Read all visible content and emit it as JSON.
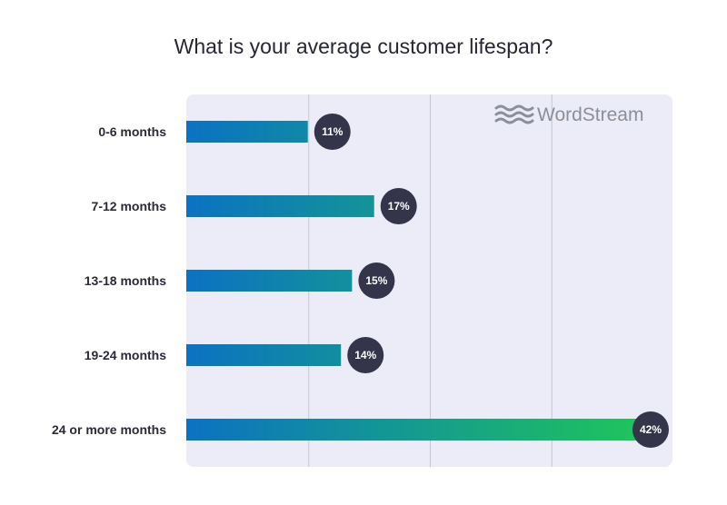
{
  "chart_data": {
    "type": "bar",
    "orientation": "horizontal",
    "title": "What is your average customer lifespan?",
    "categories": [
      "0-6 months",
      "7-12 months",
      "13-18 months",
      "19-24 months",
      "24 or more months"
    ],
    "values": [
      11,
      17,
      15,
      14,
      42
    ],
    "data_labels": [
      "11%",
      "17%",
      "15%",
      "14%",
      "42%"
    ],
    "xlim": [
      0,
      44
    ],
    "grid": true,
    "legend": "none"
  },
  "brand": {
    "name": "WordStream",
    "icon": "wave-icon"
  },
  "colors": {
    "bar_start": "#0b72c2",
    "bar_end": "#1fc55a",
    "panel": "#ececf8",
    "grid": "#c4c6d2",
    "label_bg": "#34344a"
  }
}
